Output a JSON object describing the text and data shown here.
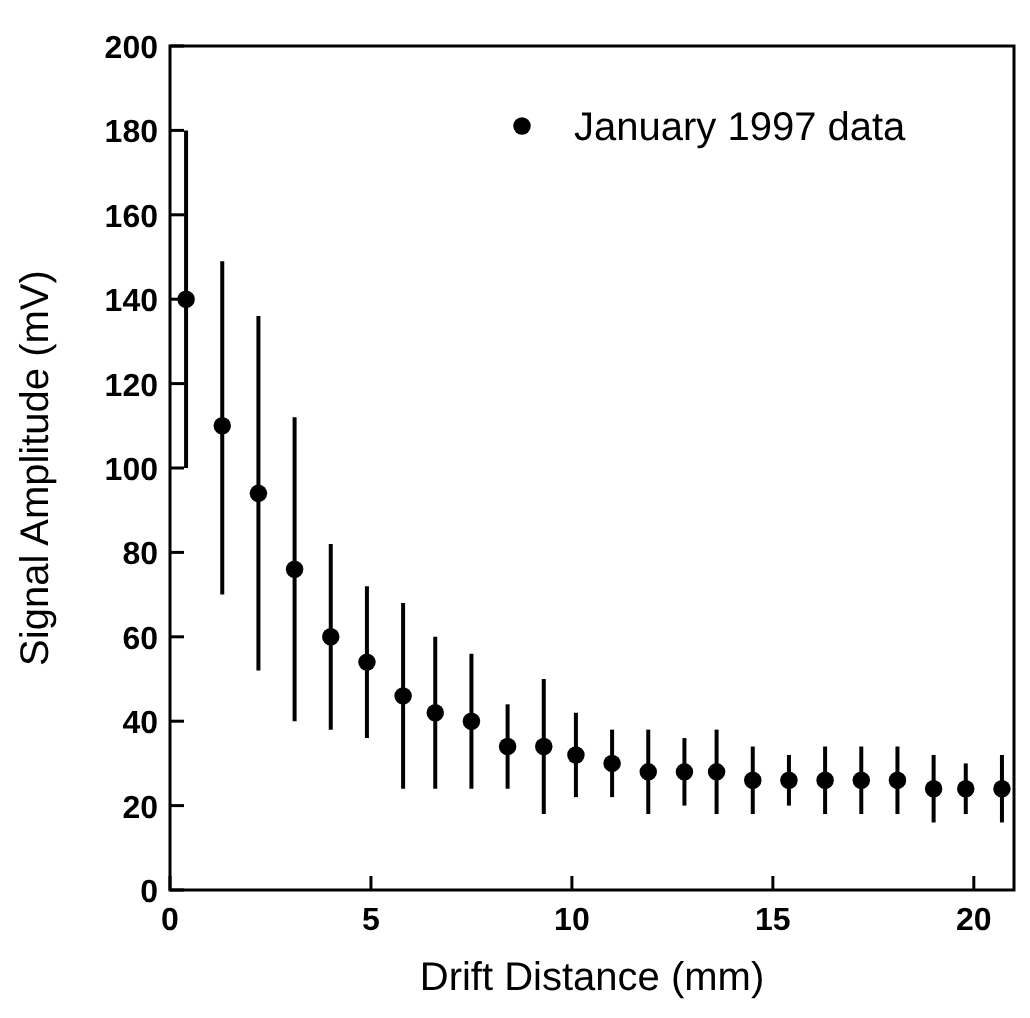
{
  "chart_data": {
    "type": "scatter",
    "xlabel": "Drift Distance (mm)",
    "ylabel": "Signal Amplitude (mV)",
    "xlim": [
      0,
      21
    ],
    "xticks": [
      0,
      5,
      10,
      15,
      20
    ],
    "ylim": [
      0,
      200
    ],
    "yticks": [
      0,
      20,
      40,
      60,
      80,
      100,
      120,
      140,
      160,
      180,
      200
    ],
    "legend": "top right",
    "marker": "circle",
    "grid": false,
    "series": [
      {
        "name": "January 1997 data",
        "color": "#000000",
        "x": [
          0.4,
          1.3,
          2.2,
          3.1,
          4.0,
          4.9,
          5.8,
          6.6,
          7.5,
          8.4,
          9.3,
          10.1,
          11.0,
          11.9,
          12.8,
          13.6,
          14.5,
          15.4,
          16.3,
          17.2,
          18.1,
          19.0,
          19.8,
          20.7
        ],
        "values": [
          140,
          110,
          94,
          76,
          60,
          54,
          46,
          42,
          40,
          34,
          34,
          32,
          30,
          28,
          28,
          28,
          26,
          26,
          26,
          26,
          26,
          24,
          24,
          24
        ],
        "errors": [
          [
            100,
            180
          ],
          [
            70,
            149
          ],
          [
            52,
            136
          ],
          [
            40,
            112
          ],
          [
            38,
            82
          ],
          [
            36,
            72
          ],
          [
            24,
            68
          ],
          [
            24,
            60
          ],
          [
            24,
            56
          ],
          [
            24,
            44
          ],
          [
            18,
            50
          ],
          [
            22,
            42
          ],
          [
            22,
            38
          ],
          [
            18,
            38
          ],
          [
            20,
            36
          ],
          [
            18,
            38
          ],
          [
            18,
            34
          ],
          [
            20,
            32
          ],
          [
            18,
            34
          ],
          [
            18,
            34
          ],
          [
            18,
            34
          ],
          [
            16,
            32
          ],
          [
            18,
            30
          ],
          [
            16,
            32
          ]
        ]
      }
    ]
  }
}
